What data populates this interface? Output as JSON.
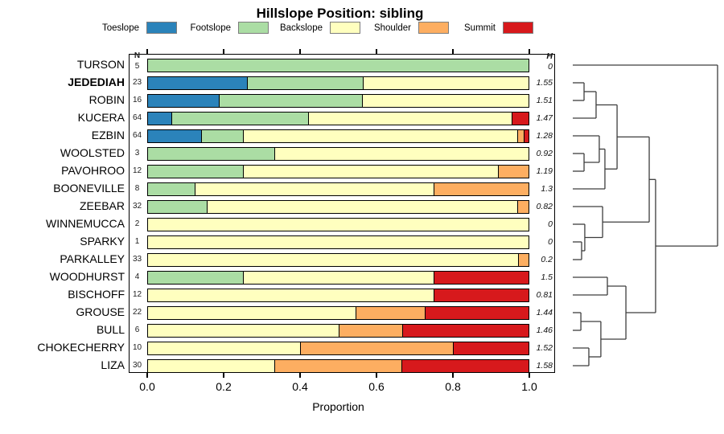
{
  "title": "Hillslope Position: sibling",
  "legend": {
    "items": [
      {
        "label": "Toeslope",
        "color": "#2B83BA"
      },
      {
        "label": "Footslope",
        "color": "#ABDDA4"
      },
      {
        "label": "Backslope",
        "color": "#FFFFBF"
      },
      {
        "label": "Shoulder",
        "color": "#FDAE61"
      },
      {
        "label": "Summit",
        "color": "#D7191C"
      }
    ]
  },
  "table": {
    "n_header": "N",
    "h_header": "H"
  },
  "axis": {
    "tick_labels": [
      "0.0",
      "0.2",
      "0.4",
      "0.6",
      "0.8",
      "1.0"
    ],
    "xlabel": "Proportion",
    "xlim": [
      0,
      1
    ]
  },
  "chart_data": {
    "type": "bar",
    "orientation": "horizontal-stacked",
    "title": "Hillslope Position: sibling",
    "xlabel": "Proportion",
    "xlim": [
      0,
      1
    ],
    "categories": [
      "Toeslope",
      "Footslope",
      "Backslope",
      "Shoulder",
      "Summit"
    ],
    "category_colors": {
      "Toeslope": "#2B83BA",
      "Footslope": "#ABDDA4",
      "Backslope": "#FFFFBF",
      "Shoulder": "#FDAE61",
      "Summit": "#D7191C"
    },
    "rows": [
      {
        "name": "TURSON",
        "bold": false,
        "n": "5",
        "h": "0",
        "segments": [
          [
            "Footslope",
            1.0
          ]
        ]
      },
      {
        "name": "JEDEDIAH",
        "bold": true,
        "n": "23",
        "h": "1.55",
        "segments": [
          [
            "Toeslope",
            0.261
          ],
          [
            "Footslope",
            0.304
          ],
          [
            "Backslope",
            0.435
          ]
        ]
      },
      {
        "name": "ROBIN",
        "bold": false,
        "n": "16",
        "h": "1.51",
        "segments": [
          [
            "Toeslope",
            0.188
          ],
          [
            "Footslope",
            0.375
          ],
          [
            "Backslope",
            0.437
          ]
        ]
      },
      {
        "name": "KUCERA",
        "bold": false,
        "n": "64",
        "h": "1.47",
        "segments": [
          [
            "Toeslope",
            0.063
          ],
          [
            "Footslope",
            0.359
          ],
          [
            "Backslope",
            0.531
          ],
          [
            "Summit",
            0.047
          ]
        ]
      },
      {
        "name": "EZBIN",
        "bold": false,
        "n": "64",
        "h": "1.28",
        "segments": [
          [
            "Toeslope",
            0.141
          ],
          [
            "Footslope",
            0.109
          ],
          [
            "Backslope",
            0.719
          ],
          [
            "Shoulder",
            0.016
          ],
          [
            "Summit",
            0.015
          ]
        ]
      },
      {
        "name": "WOOLSTED",
        "bold": false,
        "n": "3",
        "h": "0.92",
        "segments": [
          [
            "Footslope",
            0.333
          ],
          [
            "Backslope",
            0.667
          ]
        ]
      },
      {
        "name": "PAVOHROO",
        "bold": false,
        "n": "12",
        "h": "1.19",
        "segments": [
          [
            "Footslope",
            0.25
          ],
          [
            "Backslope",
            0.667
          ],
          [
            "Shoulder",
            0.083
          ]
        ]
      },
      {
        "name": "BOONEVILLE",
        "bold": false,
        "n": "8",
        "h": "1.3",
        "segments": [
          [
            "Footslope",
            0.125
          ],
          [
            "Backslope",
            0.625
          ],
          [
            "Shoulder",
            0.25
          ]
        ]
      },
      {
        "name": "ZEEBAR",
        "bold": false,
        "n": "32",
        "h": "0.82",
        "segments": [
          [
            "Footslope",
            0.156
          ],
          [
            "Backslope",
            0.813
          ],
          [
            "Shoulder",
            0.031
          ]
        ]
      },
      {
        "name": "WINNEMUCCA",
        "bold": false,
        "n": "2",
        "h": "0",
        "segments": [
          [
            "Backslope",
            1.0
          ]
        ]
      },
      {
        "name": "SPARKY",
        "bold": false,
        "n": "1",
        "h": "0",
        "segments": [
          [
            "Backslope",
            1.0
          ]
        ]
      },
      {
        "name": "PARKALLEY",
        "bold": false,
        "n": "33",
        "h": "0.2",
        "segments": [
          [
            "Backslope",
            0.97
          ],
          [
            "Shoulder",
            0.03
          ]
        ]
      },
      {
        "name": "WOODHURST",
        "bold": false,
        "n": "4",
        "h": "1.5",
        "segments": [
          [
            "Footslope",
            0.25
          ],
          [
            "Backslope",
            0.5
          ],
          [
            "Summit",
            0.25
          ]
        ]
      },
      {
        "name": "BISCHOFF",
        "bold": false,
        "n": "12",
        "h": "0.81",
        "segments": [
          [
            "Backslope",
            0.75
          ],
          [
            "Summit",
            0.25
          ]
        ]
      },
      {
        "name": "GROUSE",
        "bold": false,
        "n": "22",
        "h": "1.44",
        "segments": [
          [
            "Backslope",
            0.545
          ],
          [
            "Shoulder",
            0.182
          ],
          [
            "Summit",
            0.273
          ]
        ]
      },
      {
        "name": "BULL",
        "bold": false,
        "n": "6",
        "h": "1.46",
        "segments": [
          [
            "Backslope",
            0.5
          ],
          [
            "Shoulder",
            0.167
          ],
          [
            "Summit",
            0.333
          ]
        ]
      },
      {
        "name": "CHOKECHERRY",
        "bold": false,
        "n": "10",
        "h": "1.52",
        "segments": [
          [
            "Backslope",
            0.4
          ],
          [
            "Shoulder",
            0.4
          ],
          [
            "Summit",
            0.2
          ]
        ]
      },
      {
        "name": "LIZA",
        "bold": false,
        "n": "30",
        "h": "1.58",
        "segments": [
          [
            "Backslope",
            0.333
          ],
          [
            "Shoulder",
            0.333
          ],
          [
            "Summit",
            0.334
          ]
        ]
      }
    ],
    "dendrogram": {
      "legend_position": "right",
      "tree": {
        "height": 1.0,
        "children": [
          {
            "leaf": "TURSON"
          },
          {
            "height": 0.572,
            "children": [
              {
                "height": 0.528,
                "children": [
                  {
                    "height": 0.306,
                    "children": [
                      {
                        "height": 0.161,
                        "children": [
                          {
                            "height": 0.078,
                            "children": [
                              {
                                "leaf": "JEDEDIAH"
                              },
                              {
                                "leaf": "ROBIN"
                              }
                            ]
                          },
                          {
                            "leaf": "KUCERA"
                          }
                        ]
                      },
                      {
                        "height": 0.222,
                        "children": [
                          {
                            "height": 0.183,
                            "children": [
                              {
                                "leaf": "EZBIN"
                              },
                              {
                                "height": 0.078,
                                "children": [
                                  {
                                    "leaf": "WOOLSTED"
                                  },
                                  {
                                    "leaf": "PAVOHROO"
                                  }
                                ]
                              }
                            ]
                          },
                          {
                            "leaf": "BOONEVILLE"
                          }
                        ]
                      }
                    ]
                  },
                  {
                    "height": 0.206,
                    "children": [
                      {
                        "leaf": "ZEEBAR"
                      },
                      {
                        "height": 0.083,
                        "children": [
                          {
                            "leaf": "WINNEMUCCA"
                          },
                          {
                            "height": 0.061,
                            "children": [
                              {
                                "leaf": "SPARKY"
                              },
                              {
                                "leaf": "PARKALLEY"
                              }
                            ]
                          }
                        ]
                      }
                    ]
                  }
                ]
              },
              {
                "height": 0.367,
                "children": [
                  {
                    "height": 0.239,
                    "children": [
                      {
                        "leaf": "WOODHURST"
                      },
                      {
                        "leaf": "BISCHOFF"
                      }
                    ]
                  },
                  {
                    "height": 0.194,
                    "children": [
                      {
                        "height": 0.056,
                        "children": [
                          {
                            "leaf": "GROUSE"
                          },
                          {
                            "leaf": "BULL"
                          }
                        ]
                      },
                      {
                        "height": 0.111,
                        "children": [
                          {
                            "leaf": "CHOKECHERRY"
                          },
                          {
                            "leaf": "LIZA"
                          }
                        ]
                      }
                    ]
                  }
                ]
              }
            ]
          }
        ]
      }
    }
  }
}
